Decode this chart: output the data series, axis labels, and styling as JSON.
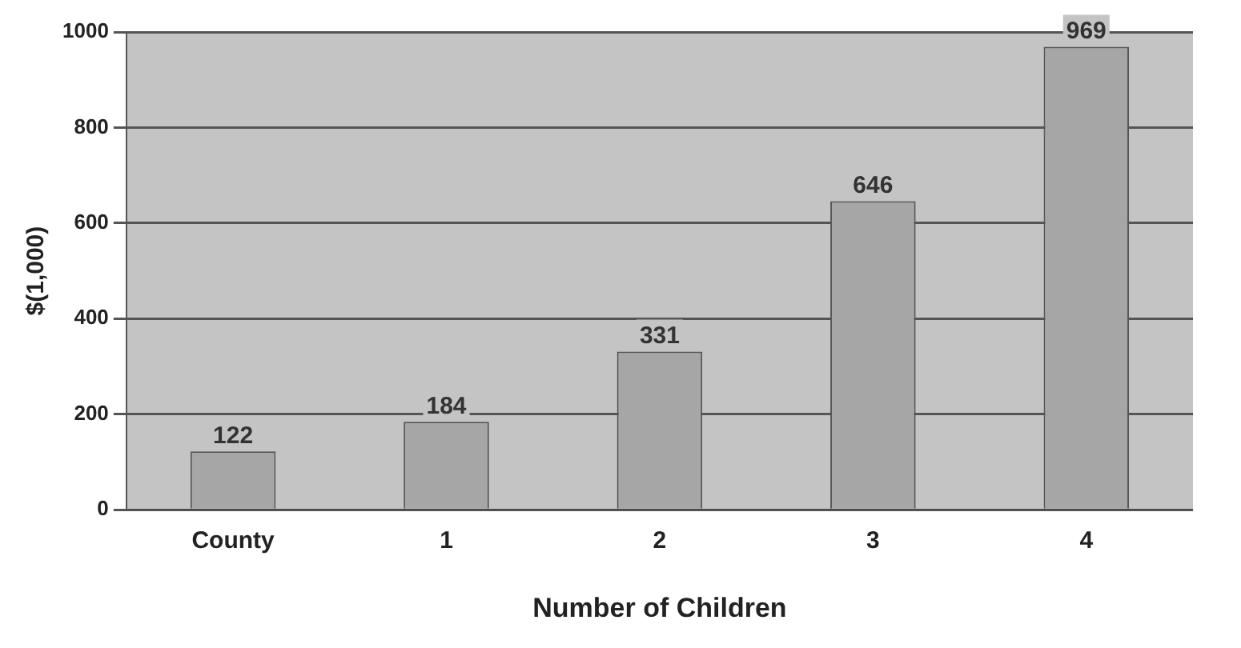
{
  "chart_data": {
    "type": "bar",
    "xlabel": "Number of Children",
    "ylabel": "$(1,000)",
    "categories": [
      "County",
      "1",
      "2",
      "3",
      "4"
    ],
    "values": [
      122,
      184,
      331,
      646,
      969
    ],
    "color": "#a6a6a6",
    "ylim": [
      0,
      1000
    ],
    "yticks": [
      0,
      200,
      400,
      600,
      800,
      1000
    ],
    "grid": "y",
    "data_labels": true,
    "legend": false
  }
}
